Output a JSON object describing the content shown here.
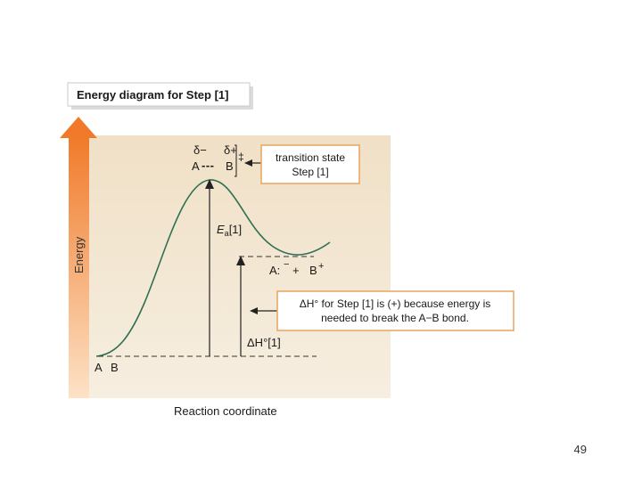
{
  "diagram": {
    "title": "Energy diagram for Step [1]",
    "y_axis_label": "Energy",
    "x_axis_label": "Reaction coordinate",
    "reactants": {
      "a": "A",
      "b": "B"
    },
    "transition_state": {
      "delta_minus": "δ−",
      "delta_plus": "δ+",
      "double_dagger": "‡",
      "atom_a": "A",
      "bond": "---",
      "atom_b": "B"
    },
    "ts_callout": {
      "line1": "transition state",
      "line2": "Step [1]"
    },
    "activation_energy": {
      "symbol": "E",
      "subscript": "a",
      "step": "[1]"
    },
    "products": {
      "anion": "A:",
      "anion_charge": "−",
      "plus": "+",
      "cation": "B",
      "cation_charge": "+"
    },
    "enthalpy_label": {
      "symbol": "ΔH°",
      "step": "[1]"
    },
    "enthalpy_callout": {
      "line1": "ΔH° for Step [1] is (+) because energy is",
      "line2": "needed to break the A−B bond."
    },
    "colors": {
      "panel_bg": "#f1e4cd",
      "callout_border": "#e7a55f",
      "arrow_orange": "#f08a3c",
      "curve": "#2f6f53"
    }
  },
  "footer": {
    "slide_number": "49"
  }
}
